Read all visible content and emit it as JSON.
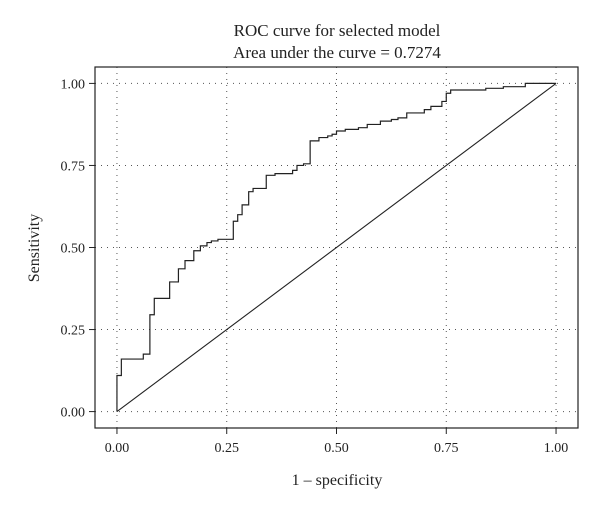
{
  "chart_data": {
    "type": "line",
    "title": "ROC curve for selected model",
    "subtitle": "Area under the curve = 0.7274",
    "xlabel": "1 – specificity",
    "ylabel": "Sensitivity",
    "xlim": [
      -0.05,
      1.05
    ],
    "ylim": [
      -0.05,
      1.05
    ],
    "x_ticks": [
      0,
      0.25,
      0.5,
      0.75,
      1
    ],
    "y_ticks": [
      0,
      0.25,
      0.5,
      0.75,
      1
    ],
    "x_tick_labels": [
      "0.00",
      "0.25",
      "0.50",
      "0.75",
      "1.00"
    ],
    "y_tick_labels": [
      "0.00",
      "0.25",
      "0.50",
      "0.75",
      "1.00"
    ],
    "grid": true,
    "grid_style": "dotted",
    "reference_line": {
      "x": [
        0,
        1
      ],
      "y": [
        0,
        1
      ]
    },
    "series": [
      {
        "x": [
          0,
          0,
          0.01,
          0.01,
          0.06,
          0.06,
          0.075,
          0.075,
          0.085,
          0.085,
          0.12,
          0.12,
          0.14,
          0.14,
          0.155,
          0.155,
          0.175,
          0.175,
          0.19,
          0.19,
          0.205,
          0.205,
          0.215,
          0.215,
          0.23,
          0.23,
          0.265,
          0.265,
          0.275,
          0.275,
          0.285,
          0.285,
          0.3,
          0.3,
          0.31,
          0.31,
          0.34,
          0.34,
          0.36,
          0.36,
          0.4,
          0.4,
          0.41,
          0.41,
          0.425,
          0.425,
          0.44,
          0.44,
          0.46,
          0.46,
          0.48,
          0.48,
          0.49,
          0.49,
          0.5,
          0.5,
          0.52,
          0.52,
          0.55,
          0.55,
          0.57,
          0.57,
          0.6,
          0.6,
          0.625,
          0.625,
          0.64,
          0.64,
          0.66,
          0.66,
          0.7,
          0.7,
          0.715,
          0.715,
          0.74,
          0.74,
          0.75,
          0.75,
          0.76,
          0.76,
          0.84,
          0.84,
          0.88,
          0.88,
          0.93,
          0.93,
          1
        ],
        "y": [
          0,
          0.11,
          0.11,
          0.16,
          0.16,
          0.175,
          0.175,
          0.295,
          0.295,
          0.345,
          0.345,
          0.395,
          0.395,
          0.435,
          0.435,
          0.46,
          0.46,
          0.49,
          0.49,
          0.505,
          0.505,
          0.515,
          0.515,
          0.52,
          0.52,
          0.525,
          0.525,
          0.58,
          0.58,
          0.6,
          0.6,
          0.63,
          0.63,
          0.67,
          0.67,
          0.68,
          0.68,
          0.72,
          0.72,
          0.725,
          0.725,
          0.735,
          0.735,
          0.75,
          0.75,
          0.755,
          0.755,
          0.825,
          0.825,
          0.835,
          0.835,
          0.84,
          0.84,
          0.845,
          0.845,
          0.855,
          0.855,
          0.86,
          0.86,
          0.865,
          0.865,
          0.875,
          0.875,
          0.885,
          0.885,
          0.89,
          0.89,
          0.895,
          0.895,
          0.91,
          0.91,
          0.92,
          0.92,
          0.93,
          0.93,
          0.945,
          0.945,
          0.97,
          0.97,
          0.98,
          0.98,
          0.985,
          0.985,
          0.99,
          0.99,
          1.0,
          1.0
        ]
      }
    ]
  }
}
